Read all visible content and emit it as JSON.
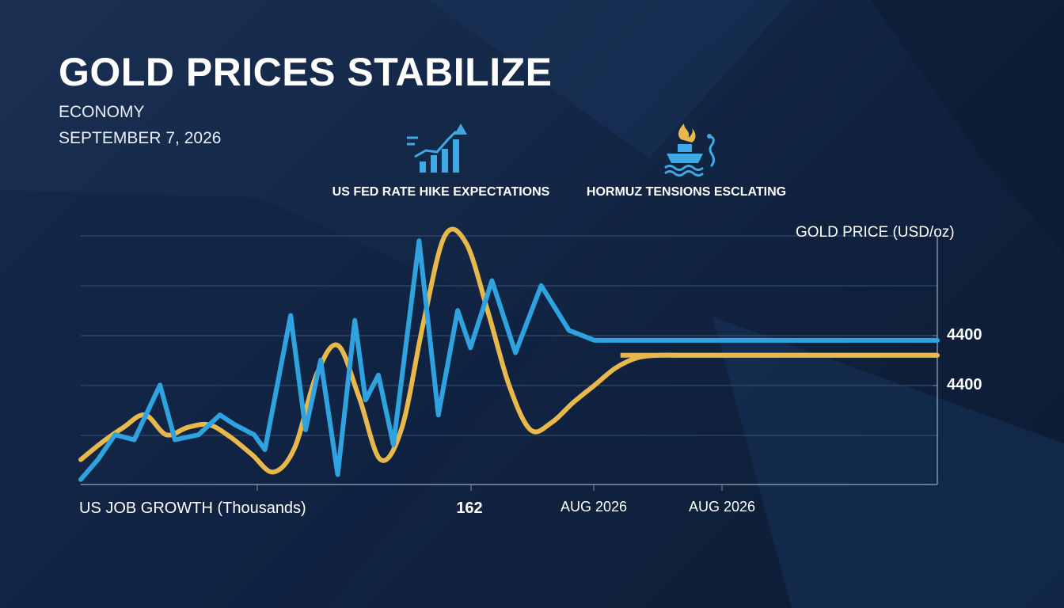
{
  "header": {
    "title": "GOLD PRICES STABILIZE",
    "category": "ECONOMY",
    "date": "SEPTEMBER 7, 2026"
  },
  "callouts": [
    {
      "label": "US FED RATE HIKE EXPECTATIONS",
      "icon": "rising-bar-chart-icon"
    },
    {
      "label": "HORMUZ TENSIONS ESCLATING",
      "icon": "burning-tanker-ship-icon"
    }
  ],
  "colors": {
    "background": "#132a4c",
    "gold_series": "#e8b84a",
    "jobs_series": "#2ea3e0",
    "grid": "#3a5274",
    "icon_blue": "#3fa9e6",
    "icon_gold": "#e8b84a"
  },
  "chart_data": {
    "type": "line",
    "title": "",
    "xlabel": "US JOB GROWTH (Thousands)",
    "ylabel": "GOLD PRICE (USD/oz)",
    "x_tick_labels": [
      "162",
      "AUG 2026",
      "AUG 2026"
    ],
    "y_tick_labels": [
      "4400",
      "4400"
    ],
    "grid": true,
    "x": [
      0,
      10,
      20,
      30,
      40,
      50,
      60,
      70,
      80,
      90,
      100,
      110,
      120,
      130,
      140,
      150,
      160,
      170,
      180,
      190,
      200,
      210,
      220,
      230,
      240,
      250,
      260,
      270,
      280,
      290,
      300,
      310,
      320,
      330,
      340,
      350,
      360,
      370,
      380,
      390,
      400
    ],
    "series": [
      {
        "values": [
          10,
          17,
          23,
          28,
          20,
          23,
          24,
          19,
          12,
          5,
          15,
          44,
          56,
          35,
          10,
          23,
          65,
          100,
          97,
          70,
          40,
          22,
          25,
          33,
          40,
          47,
          51,
          52,
          52,
          52,
          52,
          52,
          52,
          52,
          52,
          52,
          52,
          52,
          52,
          52,
          52
        ]
      },
      {
        "points": [
          [
            0,
            2
          ],
          [
            8,
            10
          ],
          [
            16,
            20
          ],
          [
            25,
            18
          ],
          [
            37,
            40
          ],
          [
            44,
            18
          ],
          [
            55,
            20
          ],
          [
            65,
            28
          ],
          [
            72,
            24
          ],
          [
            81,
            20
          ],
          [
            86,
            14
          ],
          [
            98,
            68
          ],
          [
            105,
            22
          ],
          [
            112,
            50
          ],
          [
            120,
            4
          ],
          [
            128,
            66
          ],
          [
            133,
            34
          ],
          [
            139,
            44
          ],
          [
            146,
            16
          ],
          [
            158,
            98
          ],
          [
            167,
            28
          ],
          [
            176,
            70
          ],
          [
            182,
            55
          ],
          [
            192,
            82
          ],
          [
            203,
            53
          ],
          [
            215,
            80
          ],
          [
            228,
            62
          ],
          [
            240,
            58
          ],
          [
            252,
            58
          ],
          [
            400,
            58
          ]
        ]
      }
    ]
  }
}
